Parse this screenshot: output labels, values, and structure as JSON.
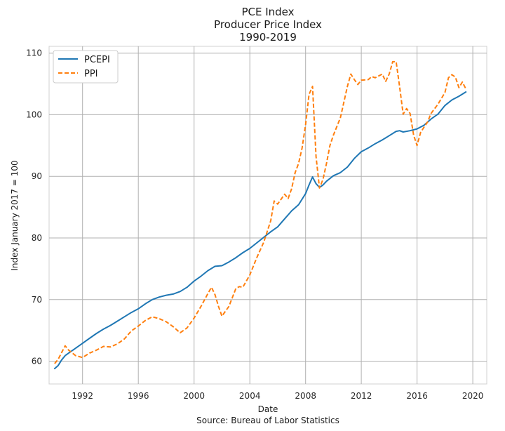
{
  "chart_data": {
    "type": "line",
    "title": [
      "PCE Index",
      "Producer Price Index",
      "1990-2019"
    ],
    "xlabel": "Date",
    "ylabel": "Index January 2017 = 100",
    "source": "Source: Bureau of Labor Statistics",
    "xlim": [
      1989.6,
      2021.0
    ],
    "ylim": [
      56.3,
      111.1
    ],
    "x_ticks": [
      1992,
      1996,
      2000,
      2004,
      2008,
      2012,
      2016,
      2020
    ],
    "x_tick_labels": [
      "1992",
      "1996",
      "2000",
      "2004",
      "2008",
      "2012",
      "2016",
      "2020"
    ],
    "y_ticks": [
      60,
      70,
      80,
      90,
      100,
      110
    ],
    "y_tick_labels": [
      "60",
      "70",
      "80",
      "90",
      "100",
      "110"
    ],
    "grid": true,
    "legend_position": "top-left",
    "colors": {
      "PCEPI": "#1f77b4",
      "PPI": "#ff7f0e",
      "grid": "#b0b0b0"
    },
    "series": [
      {
        "name": "PCEPI",
        "style": "solid",
        "x": [
          1990.0,
          1990.25,
          1990.5,
          1990.75,
          1991.0,
          1991.5,
          1992.0,
          1992.5,
          1993.0,
          1993.5,
          1994.0,
          1994.5,
          1995.0,
          1995.5,
          1996.0,
          1996.5,
          1997.0,
          1997.5,
          1998.0,
          1998.5,
          1999.0,
          1999.5,
          2000.0,
          2000.5,
          2001.0,
          2001.5,
          2002.0,
          2002.5,
          2003.0,
          2003.5,
          2004.0,
          2004.5,
          2005.0,
          2005.5,
          2006.0,
          2006.5,
          2007.0,
          2007.5,
          2008.0,
          2008.25,
          2008.5,
          2008.75,
          2009.0,
          2009.25,
          2009.5,
          2010.0,
          2010.5,
          2011.0,
          2011.5,
          2012.0,
          2012.5,
          2013.0,
          2013.5,
          2014.0,
          2014.5,
          2014.75,
          2015.0,
          2015.5,
          2016.0,
          2016.5,
          2017.0,
          2017.5,
          2018.0,
          2018.5,
          2019.0,
          2019.5
        ],
        "y": [
          58.8,
          59.3,
          60.2,
          60.9,
          61.3,
          62.1,
          62.9,
          63.7,
          64.5,
          65.2,
          65.8,
          66.5,
          67.2,
          67.9,
          68.5,
          69.3,
          70.0,
          70.4,
          70.7,
          70.9,
          71.3,
          72.0,
          73.0,
          73.8,
          74.7,
          75.4,
          75.5,
          76.1,
          76.8,
          77.6,
          78.3,
          79.2,
          80.1,
          81.0,
          81.8,
          83.1,
          84.4,
          85.4,
          87.2,
          88.6,
          89.9,
          88.8,
          88.2,
          88.6,
          89.2,
          90.1,
          90.6,
          91.5,
          92.9,
          94.0,
          94.6,
          95.3,
          95.9,
          96.6,
          97.3,
          97.4,
          97.2,
          97.4,
          97.7,
          98.3,
          99.3,
          100.1,
          101.5,
          102.4,
          103.0,
          103.7
        ]
      },
      {
        "name": "PPI",
        "style": "dashed",
        "x": [
          1990.0,
          1990.25,
          1990.5,
          1990.75,
          1991.0,
          1991.5,
          1992.0,
          1992.5,
          1993.0,
          1993.5,
          1994.0,
          1994.5,
          1995.0,
          1995.5,
          1996.0,
          1996.5,
          1997.0,
          1997.5,
          1998.0,
          1998.5,
          1999.0,
          1999.5,
          2000.0,
          2000.5,
          2001.0,
          2001.25,
          2001.5,
          2001.75,
          2002.0,
          2002.5,
          2003.0,
          2003.25,
          2003.5,
          2004.0,
          2004.5,
          2005.0,
          2005.5,
          2005.75,
          2006.0,
          2006.5,
          2006.75,
          2007.0,
          2007.25,
          2007.5,
          2007.75,
          2008.0,
          2008.25,
          2008.5,
          2008.75,
          2009.0,
          2009.25,
          2009.5,
          2009.75,
          2010.0,
          2010.5,
          2011.0,
          2011.25,
          2011.5,
          2011.75,
          2012.0,
          2012.5,
          2012.75,
          2013.0,
          2013.5,
          2013.75,
          2014.0,
          2014.25,
          2014.5,
          2014.75,
          2015.0,
          2015.25,
          2015.5,
          2015.75,
          2016.0,
          2016.25,
          2016.5,
          2016.75,
          2017.0,
          2017.5,
          2018.0,
          2018.25,
          2018.5,
          2018.75,
          2019.0,
          2019.25,
          2019.5
        ],
        "y": [
          59.6,
          60.3,
          61.4,
          62.5,
          61.8,
          60.9,
          60.6,
          61.3,
          61.8,
          62.4,
          62.3,
          62.8,
          63.6,
          64.9,
          65.7,
          66.6,
          67.2,
          66.9,
          66.4,
          65.6,
          64.6,
          65.4,
          67.0,
          68.9,
          71.0,
          72.0,
          70.8,
          68.9,
          67.3,
          68.9,
          71.8,
          72.1,
          72.0,
          74.0,
          76.8,
          79.3,
          82.8,
          86.0,
          85.5,
          87.1,
          86.4,
          88.0,
          90.6,
          92.1,
          94.6,
          98.4,
          103.3,
          104.6,
          93.2,
          88.1,
          89.5,
          92.1,
          95.0,
          96.7,
          99.5,
          104.6,
          106.6,
          105.7,
          104.9,
          105.6,
          105.7,
          106.2,
          106.0,
          106.6,
          105.4,
          106.6,
          108.6,
          108.6,
          104.5,
          100.1,
          101.0,
          100.2,
          96.7,
          95.0,
          97.1,
          98.0,
          98.8,
          100.2,
          101.7,
          103.6,
          106.0,
          106.5,
          106.1,
          104.4,
          105.3,
          104.2
        ]
      }
    ]
  }
}
